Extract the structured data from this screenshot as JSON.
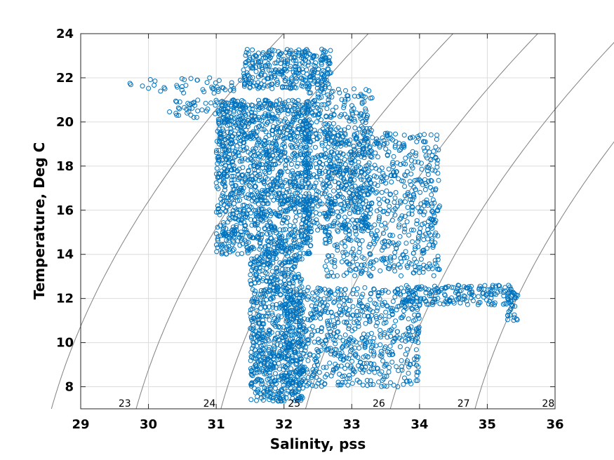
{
  "chart_data": {
    "type": "scatter",
    "xlabel": "Salinity, pss",
    "ylabel": "Temperature, Deg C",
    "xlim": [
      29,
      36
    ],
    "ylim": [
      7,
      24
    ],
    "xticks": [
      "29",
      "30",
      "31",
      "32",
      "33",
      "34",
      "35",
      "36"
    ],
    "yticks": [
      "8",
      "10",
      "12",
      "14",
      "16",
      "18",
      "20",
      "22",
      "24"
    ],
    "grid": true,
    "marker": "open-circle",
    "series_color": "#0072BD",
    "contour_color": "#808080",
    "density_contours": [
      {
        "label": "23",
        "value": 23,
        "label_salinity": 29.65
      },
      {
        "label": "24",
        "value": 24,
        "label_salinity": 30.9
      },
      {
        "label": "25",
        "value": 25,
        "label_salinity": 32.15
      },
      {
        "label": "26",
        "value": 26,
        "label_salinity": 33.4
      },
      {
        "label": "27",
        "value": 27,
        "label_salinity": 34.65
      },
      {
        "label": "28",
        "value": 28,
        "label_salinity": 35.9
      }
    ],
    "regions": [
      {
        "salinity_range": [
          29.7,
          31.6
        ],
        "temperature_range": [
          21.3,
          22.0
        ],
        "density": 0.25
      },
      {
        "salinity_range": [
          30.3,
          31.5
        ],
        "temperature_range": [
          20.2,
          21.0
        ],
        "density": 0.4
      },
      {
        "salinity_range": [
          31.4,
          32.7
        ],
        "temperature_range": [
          21.5,
          23.3
        ],
        "density": 1.0
      },
      {
        "salinity_range": [
          31.0,
          32.4
        ],
        "temperature_range": [
          14.0,
          21.0
        ],
        "density": 1.0
      },
      {
        "salinity_range": [
          32.3,
          33.3
        ],
        "temperature_range": [
          15.0,
          21.5
        ],
        "density": 0.55
      },
      {
        "salinity_range": [
          32.6,
          34.3
        ],
        "temperature_range": [
          13.0,
          19.5
        ],
        "density": 0.45
      },
      {
        "salinity_range": [
          31.5,
          32.3
        ],
        "temperature_range": [
          7.3,
          14.0
        ],
        "density": 1.0
      },
      {
        "salinity_range": [
          32.0,
          34.0
        ],
        "temperature_range": [
          8.0,
          12.5
        ],
        "density": 0.55
      },
      {
        "salinity_range": [
          33.8,
          35.4
        ],
        "temperature_range": [
          11.7,
          12.6
        ],
        "density": 0.9
      },
      {
        "salinity_range": [
          35.3,
          35.45
        ],
        "temperature_range": [
          11.0,
          12.4
        ],
        "density": 1.0
      }
    ]
  }
}
